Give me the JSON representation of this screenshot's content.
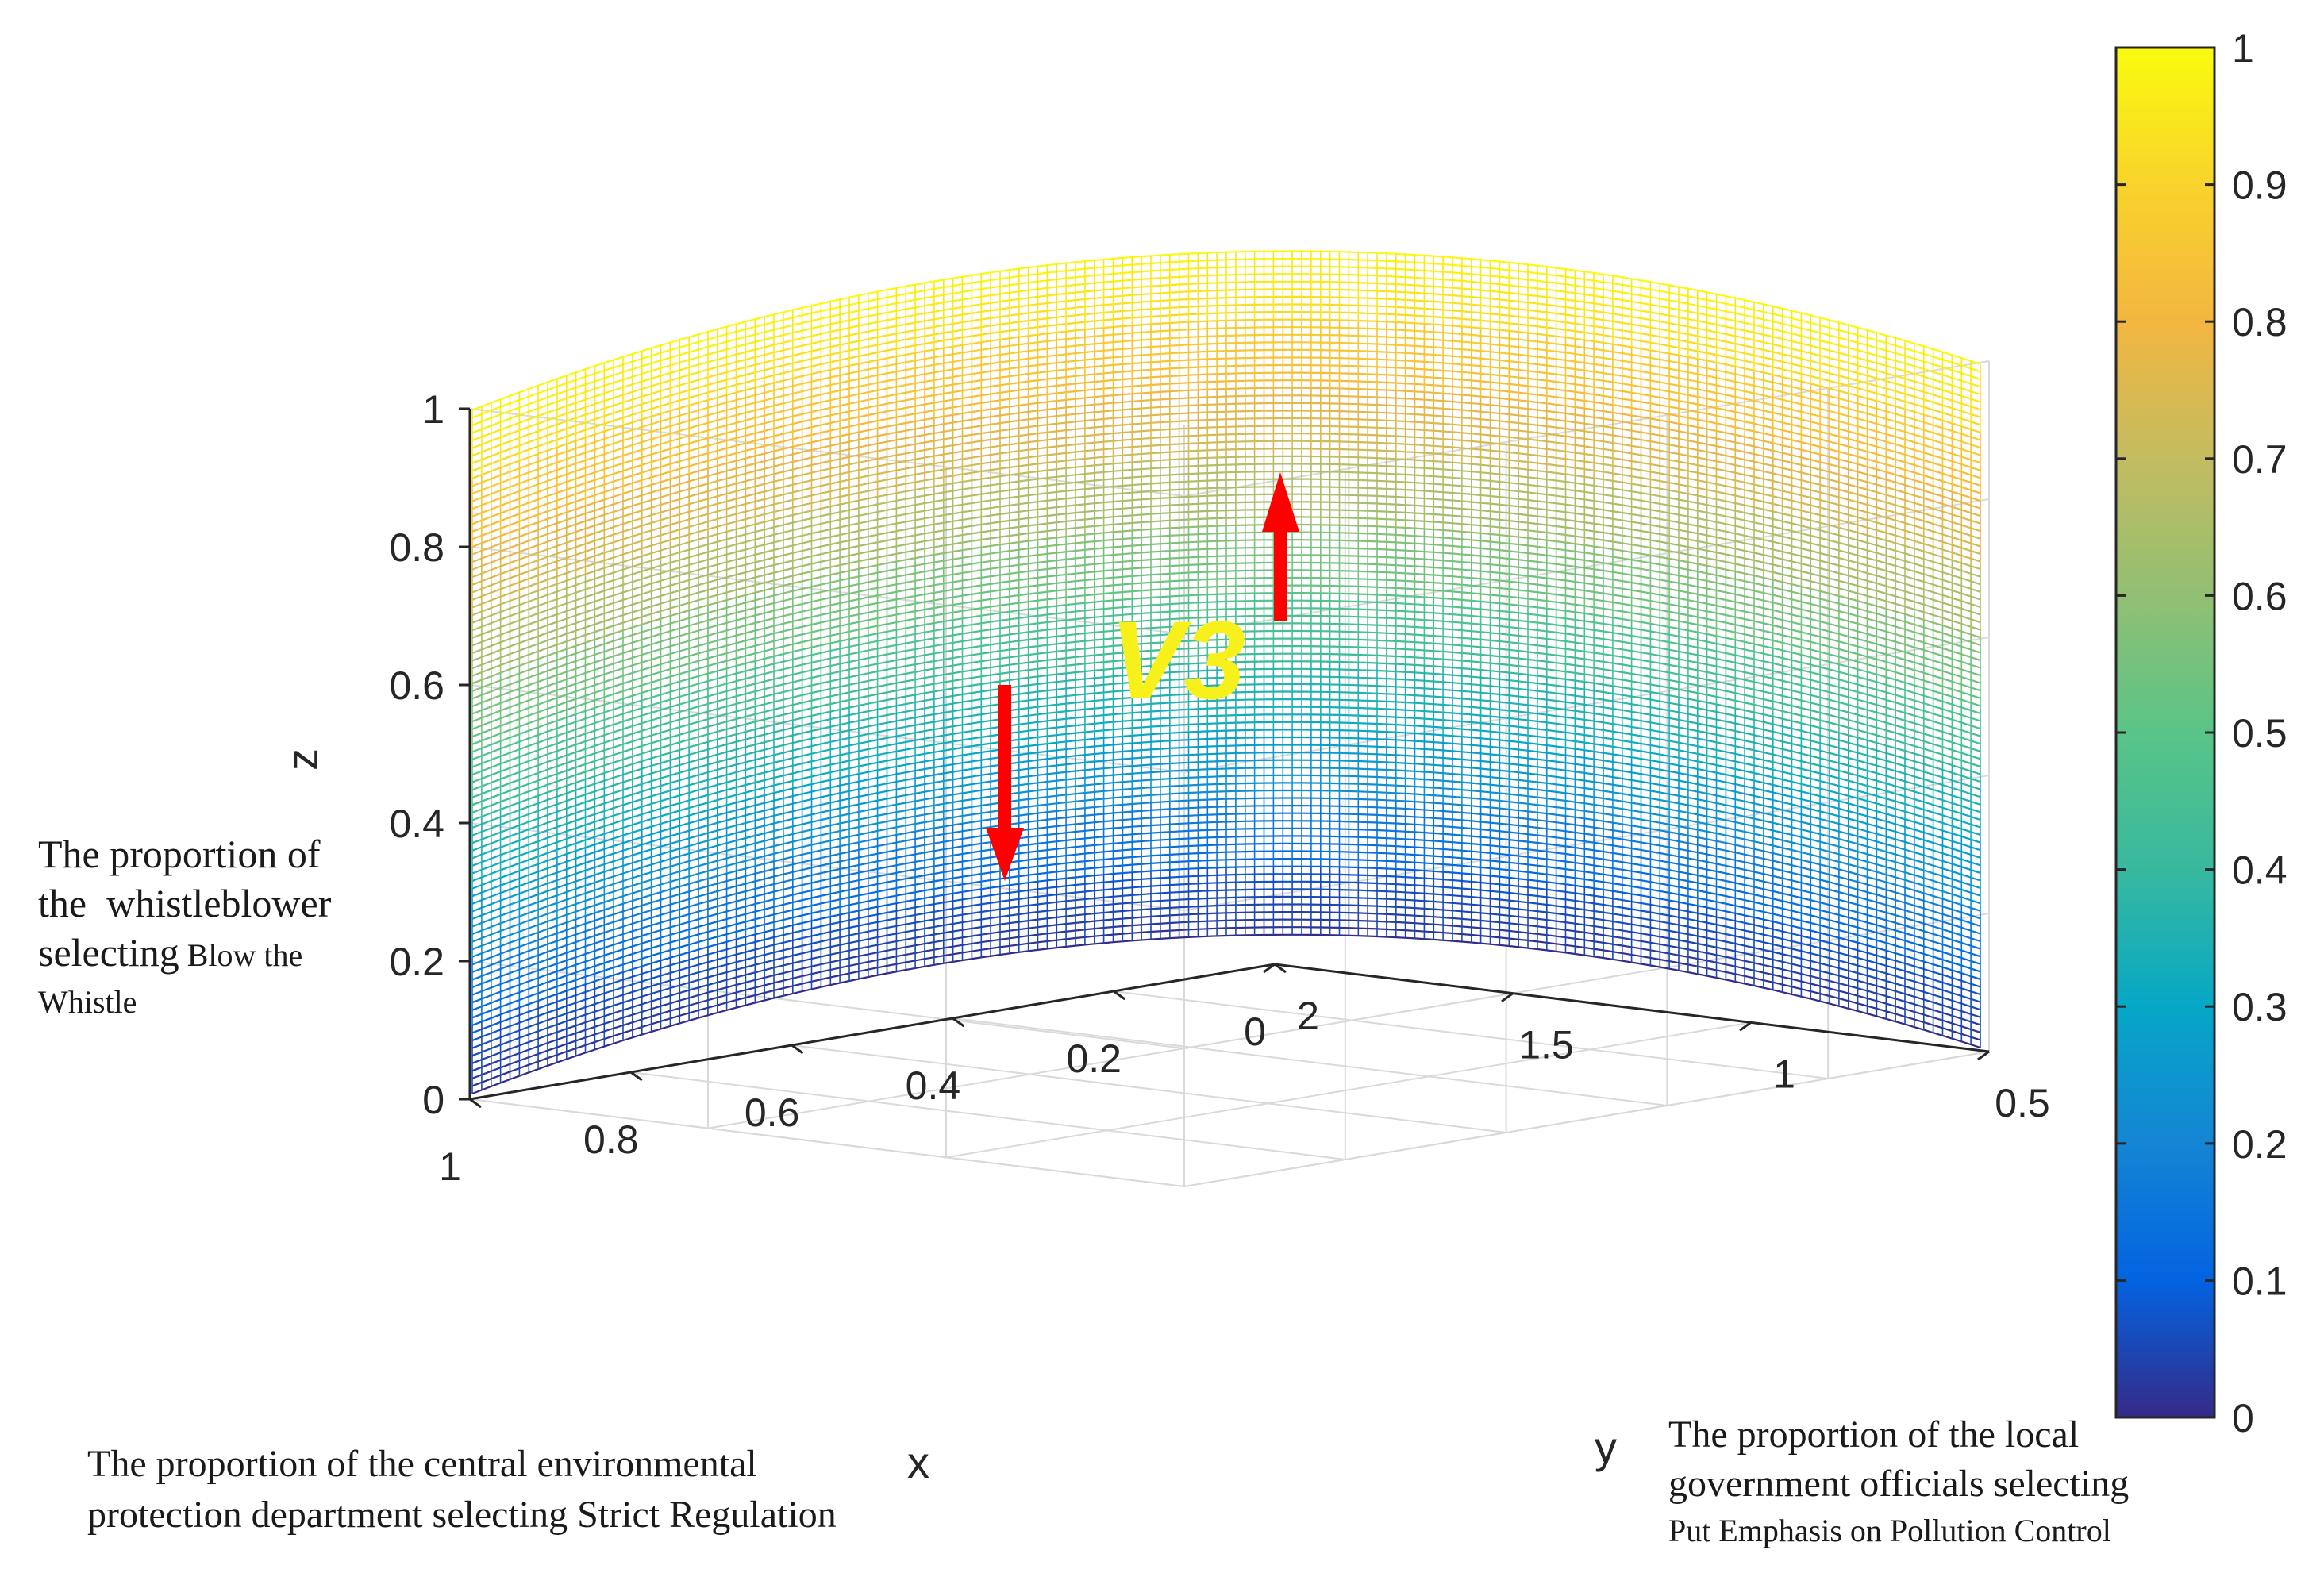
{
  "chart_data": {
    "type": "surface3d",
    "title": "",
    "surface": {
      "name": "V3",
      "description_text": "V3",
      "z_at_x0": 0,
      "z_at_x1": 1,
      "x_range": [
        0,
        1
      ],
      "y_range": [
        0.5,
        2
      ]
    },
    "axes": {
      "x": {
        "label": "x",
        "ticks": [
          "0",
          "0.2",
          "0.4",
          "0.6",
          "0.8",
          "1"
        ],
        "range": [
          0,
          1
        ]
      },
      "y": {
        "label": "y",
        "ticks": [
          "0.5",
          "1",
          "1.5",
          "2"
        ],
        "range": [
          0.5,
          2
        ]
      },
      "z": {
        "label": "z",
        "ticks": [
          "0",
          "0.2",
          "0.4",
          "0.6",
          "0.8",
          "1"
        ],
        "range": [
          0,
          1
        ]
      }
    },
    "colorbar": {
      "colormap": "parula",
      "range": [
        0,
        1
      ],
      "ticks": [
        "0",
        "0.1",
        "0.2",
        "0.3",
        "0.4",
        "0.5",
        "0.6",
        "0.7",
        "0.8",
        "0.9",
        "1"
      ]
    },
    "arrows": [
      {
        "name": "down-arrow",
        "direction": "down",
        "color": "#ff0000"
      },
      {
        "name": "up-arrow",
        "direction": "up",
        "color": "#ff0000"
      }
    ],
    "annotations": {
      "z_desc": [
        "The proportion of",
        "the  whistleblower",
        "selecting",
        "Blow the",
        "Whistle"
      ],
      "x_desc": [
        "The proportion of the central environmental",
        "protection department selecting Strict Regulation"
      ],
      "y_desc": [
        "The proportion of the local",
        "government officials selecting",
        "Put Emphasis on Pollution Control"
      ]
    }
  }
}
